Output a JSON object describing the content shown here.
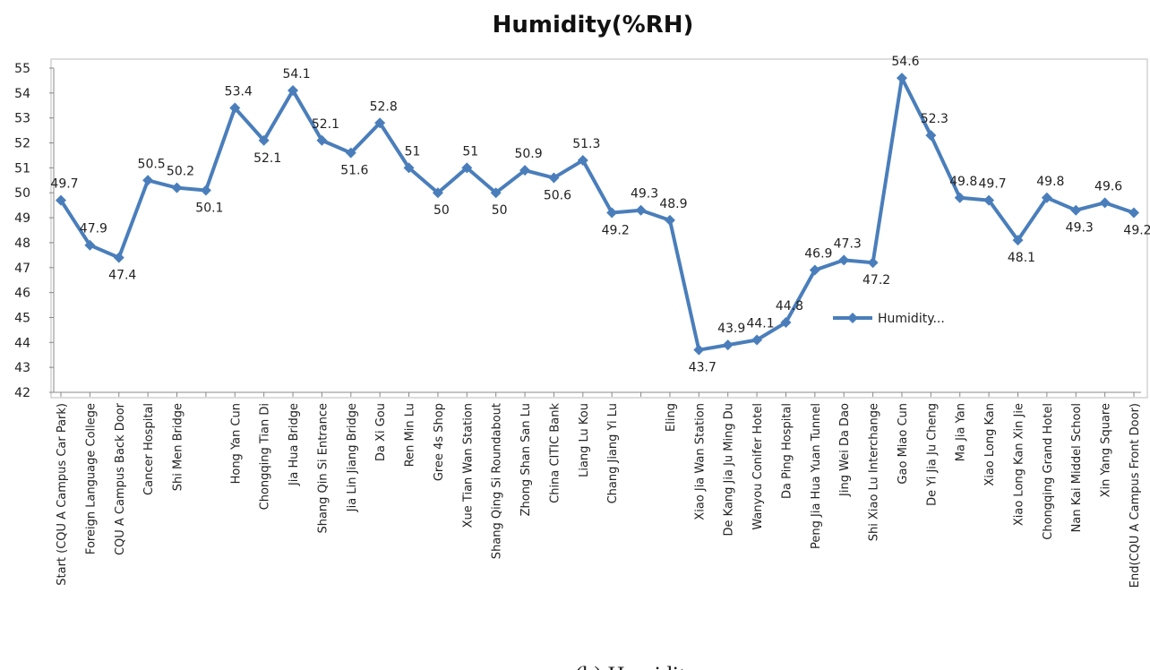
{
  "chart_data": {
    "type": "line",
    "title": "Humidity(%RH)",
    "caption": "(b) Humidity",
    "categories": [
      "Start (CQU A Campus Car Park)",
      "Foreign Language College",
      "CQU A Campus Back Door",
      "Cancer Hospital",
      "Shi Men Bridge",
      null,
      "Hong  Yan Cun",
      "Chongqing Tian Di",
      "Jia Hua Bridge",
      "Shang Qin Si Entrance",
      "Jia Lin Jiang Bridge",
      "Da Xi Gou",
      "Ren Min Lu",
      "Gree 4s Shop",
      "Xue Tian Wan Station",
      "Shang Qing Si Roundabout",
      "Zhong Shan San Lu",
      "China CITIC Bank",
      "Liang Lu Kou",
      "Chang Jiang Yi Lu",
      null,
      "Eling",
      "Xiao Jia Wan Station",
      "De Kang Jia Ju Ming Du",
      "Wanyou Conifer Hotel",
      "Da Ping Hospital",
      "Peng Jia Hua Yuan Tunnel",
      "Jing Wei Da Dao",
      "Shi Xiao Lu Interchange",
      "Gao Miao Cun",
      "De Yi Jia Ju Cheng",
      "Ma Jia Yan",
      "Xiao Long Kan",
      "Xiao Long Kan Xin Jie",
      "Chongqing Grand Hotel",
      "Nan Kai Middel School",
      "Xin Yang Square",
      "End(CQU A Campus Front Door)"
    ],
    "series": [
      {
        "name": "Humidity...",
        "color": "#4a7ebb",
        "values": [
          49.7,
          47.9,
          47.4,
          50.5,
          50.2,
          50.1,
          53.4,
          52.1,
          54.1,
          52.1,
          51.6,
          52.8,
          51,
          50,
          51,
          50,
          50.9,
          50.6,
          51.3,
          49.2,
          49.3,
          48.9,
          43.7,
          43.9,
          44.1,
          44.8,
          46.9,
          47.3,
          47.2,
          54.6,
          52.3,
          49.8,
          49.7,
          48.1,
          49.8,
          49.3,
          49.6,
          49.2
        ]
      }
    ],
    "ylim": [
      42,
      55
    ],
    "yticks": [
      42,
      43,
      44,
      45,
      46,
      47,
      48,
      49,
      50,
      51,
      52,
      53,
      54,
      55
    ],
    "grid": false,
    "legend": "center"
  }
}
